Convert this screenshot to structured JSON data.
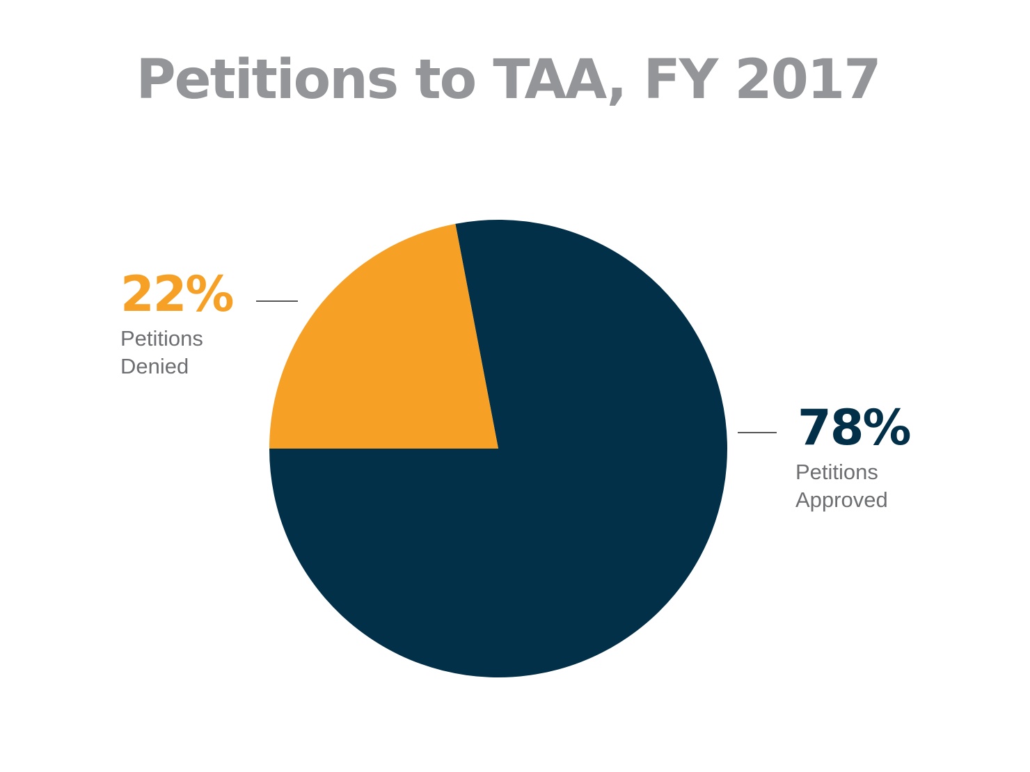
{
  "title": "Petitions to TAA, FY 2017",
  "colors": {
    "approved": "#023049",
    "denied": "#F6A026",
    "title": "#939598",
    "label": "#6d6e71"
  },
  "labels": {
    "denied": {
      "pct": "22%",
      "line1": "Petitions",
      "line2": "Denied"
    },
    "approved": {
      "pct": "78%",
      "line1": "Petitions",
      "line2": "Approved"
    }
  },
  "chart_data": {
    "type": "pie",
    "title": "Petitions to TAA, FY 2017",
    "categories": [
      "Petitions Denied",
      "Petitions Approved"
    ],
    "values": [
      22,
      78
    ],
    "unit": "%",
    "colors": [
      "#F6A026",
      "#023049"
    ],
    "legend": "none (direct labels with leader lines)"
  }
}
